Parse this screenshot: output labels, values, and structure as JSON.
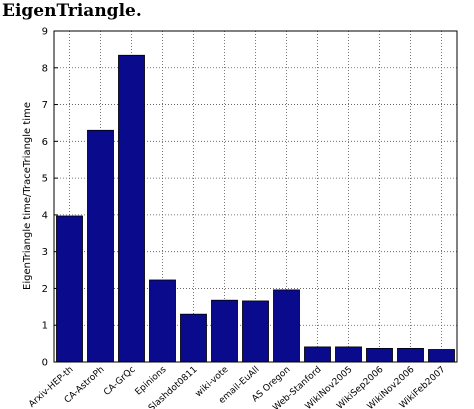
{
  "chart_data": {
    "type": "bar",
    "title": "EigenTriangle.",
    "ylabel": "EigenTriangle time/TraceTriangle time",
    "categories": [
      "Arxiv-HEP-th",
      "CA-AstroPh",
      "CA-GrQc",
      "Epinions",
      "Slashdot0811",
      "wiki-vote",
      "email-EuAll",
      "AS Oregon",
      "Web-Stanford",
      "WikiNov2005",
      "WikiSep2006",
      "WikiNov2006",
      "WikiFeb2007"
    ],
    "values": [
      3.97,
      6.3,
      8.34,
      2.23,
      1.3,
      1.68,
      1.66,
      1.96,
      0.41,
      0.41,
      0.37,
      0.37,
      0.34
    ],
    "color": "#0a0a8c",
    "ylim": [
      0,
      9
    ],
    "yticks": [
      0,
      1,
      2,
      3,
      4,
      5,
      6,
      7,
      8,
      9
    ],
    "grid": true
  }
}
